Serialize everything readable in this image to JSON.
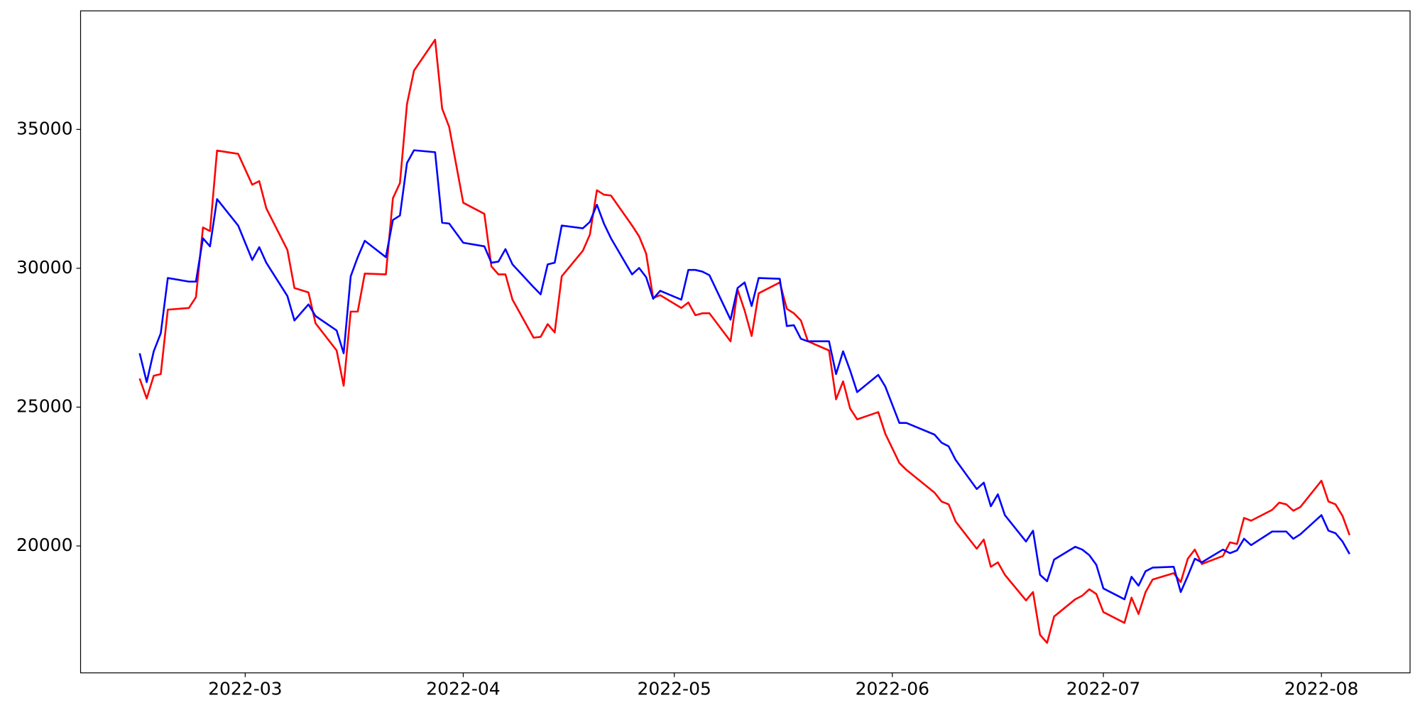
{
  "chart_data": {
    "type": "line",
    "x": [
      19037,
      19038,
      19039,
      19040,
      19041,
      19044,
      19045,
      19046,
      19047,
      19048,
      19051,
      19053,
      19054,
      19055,
      19058,
      19059,
      19061,
      19062,
      19065,
      19066,
      19067,
      19068,
      19069,
      19072,
      19073,
      19074,
      19075,
      19076,
      19079,
      19080,
      19081,
      19083,
      19086,
      19087,
      19088,
      19089,
      19090,
      19093,
      19094,
      19095,
      19096,
      19097,
      19100,
      19101,
      19102,
      19103,
      19104,
      19107,
      19108,
      19109,
      19110,
      19111,
      19114,
      19115,
      19116,
      19117,
      19118,
      19121,
      19122,
      19123,
      19124,
      19125,
      19128,
      19129,
      19130,
      19131,
      19132,
      19135,
      19136,
      19137,
      19138,
      19139,
      19142,
      19143,
      19145,
      19146,
      19150,
      19151,
      19152,
      19153,
      19156,
      19157,
      19158,
      19159,
      19160,
      19163,
      19164,
      19165,
      19166,
      19167,
      19170,
      19171,
      19172,
      19173,
      19174,
      19177,
      19178,
      19179,
      19180,
      19181,
      19184,
      19185,
      19186,
      19187,
      19188,
      19191,
      19192,
      19193,
      19194,
      19195,
      19198,
      19199,
      19200,
      19201,
      19202,
      19205,
      19206,
      19207,
      19208,
      19209
    ],
    "series": [
      {
        "color": "#ff0000",
        "values": [
          26030,
          25310,
          26130,
          26190,
          28510,
          28570,
          28960,
          31470,
          31340,
          34240,
          34120,
          33010,
          33140,
          32160,
          30660,
          29290,
          29130,
          28020,
          27040,
          25770,
          28440,
          28440,
          29810,
          29780,
          32520,
          33070,
          35910,
          37120,
          38230,
          35750,
          35090,
          32360,
          31960,
          30070,
          29780,
          29780,
          28870,
          27500,
          27530,
          27990,
          27690,
          29710,
          30630,
          31210,
          32810,
          32650,
          32620,
          31540,
          31150,
          30530,
          28930,
          29030,
          28570,
          28770,
          28310,
          28380,
          28380,
          27370,
          29230,
          28480,
          27560,
          29100,
          29490,
          28540,
          28380,
          28120,
          27370,
          27040,
          25280,
          25930,
          24950,
          24560,
          24820,
          24040,
          22990,
          22740,
          21920,
          21600,
          21500,
          20880,
          19900,
          20230,
          19250,
          19410,
          18960,
          18040,
          18340,
          16800,
          16510,
          17460,
          18080,
          18210,
          18440,
          18270,
          17620,
          17230,
          18140,
          17550,
          18340,
          18790,
          19020,
          18700,
          19540,
          19870,
          19350,
          19640,
          20130,
          20070,
          21010,
          20910,
          21300,
          21560,
          21500,
          21270,
          21400,
          22350,
          21600,
          21500,
          21080,
          20390
        ]
      },
      {
        "color": "#0000ff",
        "values": [
          26940,
          25900,
          27010,
          27660,
          29650,
          29520,
          29520,
          31080,
          30790,
          32490,
          31540,
          30300,
          30760,
          30200,
          29000,
          28120,
          28700,
          28280,
          27760,
          26940,
          29710,
          30400,
          30990,
          30400,
          31740,
          31900,
          33790,
          34250,
          34180,
          31640,
          31610,
          30920,
          30790,
          30200,
          30240,
          30690,
          30140,
          29320,
          29060,
          30140,
          30200,
          31540,
          31440,
          31670,
          32290,
          31610,
          31080,
          29780,
          30010,
          29680,
          28900,
          29190,
          28870,
          29940,
          29940,
          29880,
          29750,
          28150,
          29290,
          29490,
          28640,
          29650,
          29620,
          27920,
          27950,
          27460,
          27370,
          27370,
          26190,
          27010,
          26320,
          25540,
          26160,
          25740,
          24430,
          24430,
          24010,
          23720,
          23590,
          23100,
          22050,
          22280,
          21430,
          21860,
          21110,
          20160,
          20550,
          18960,
          18730,
          19510,
          19970,
          19870,
          19670,
          19320,
          18470,
          18080,
          18890,
          18570,
          19090,
          19220,
          19250,
          18340,
          18920,
          19540,
          19410,
          19870,
          19740,
          19840,
          20260,
          20030,
          20520,
          20520,
          20520,
          20260,
          20420,
          21110,
          20550,
          20460,
          20160,
          19710
        ]
      }
    ],
    "xlim": [
      19028.6,
      19217.6
    ],
    "xticks": [
      {
        "value": 19052,
        "label": "2022-03"
      },
      {
        "value": 19083,
        "label": "2022-04"
      },
      {
        "value": 19113,
        "label": "2022-05"
      },
      {
        "value": 19144,
        "label": "2022-06"
      },
      {
        "value": 19174,
        "label": "2022-07"
      },
      {
        "value": 19205,
        "label": "2022-08"
      }
    ],
    "ylim": [
      15430,
      39270
    ],
    "yticks": [
      20000,
      25000,
      30000,
      35000
    ]
  }
}
